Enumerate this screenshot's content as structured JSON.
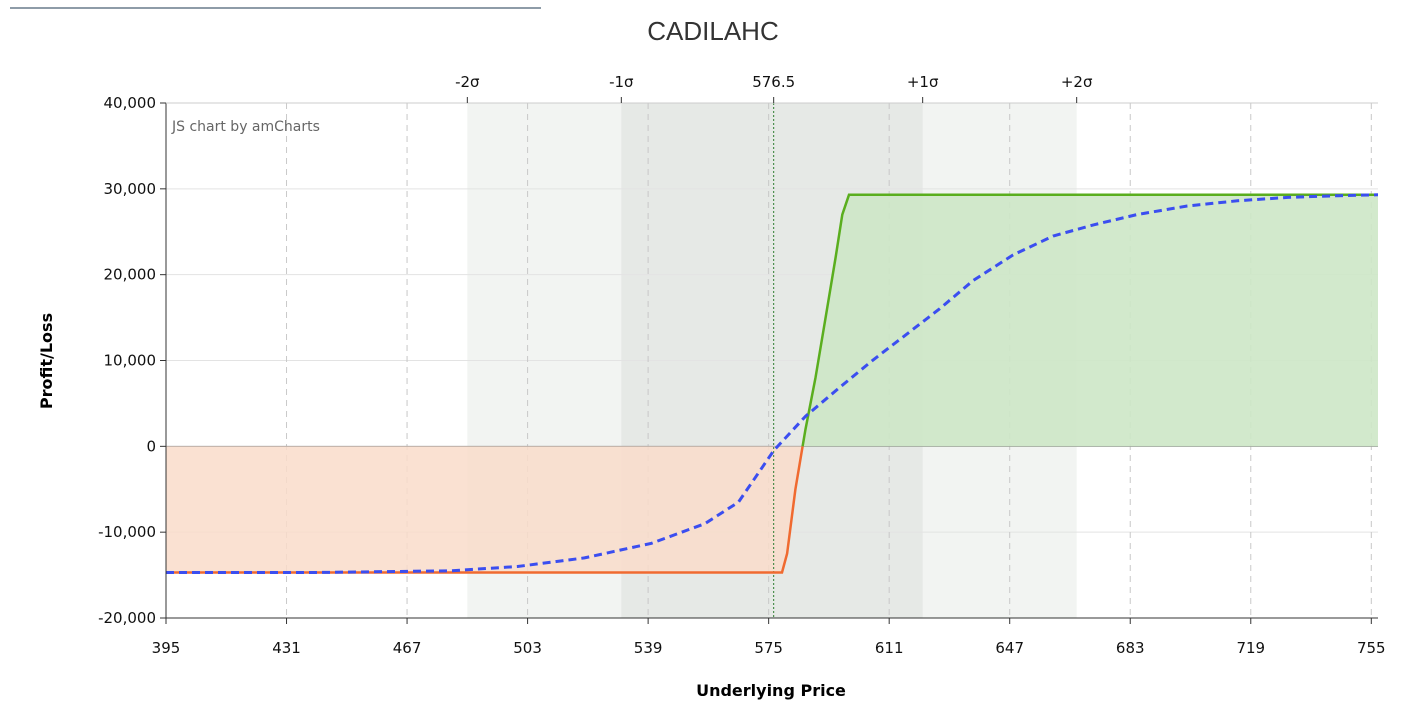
{
  "chart_data": {
    "type": "line",
    "title": "CADILAHC",
    "xlabel": "Underlying Price",
    "ylabel": "Profit/Loss",
    "watermark": "JS chart by amCharts",
    "xlim": [
      395,
      757
    ],
    "ylim": [
      -20000,
      40000
    ],
    "x_ticks": [
      395,
      431,
      467,
      503,
      539,
      575,
      611,
      647,
      683,
      719,
      755
    ],
    "x_tick_labels": [
      "395",
      "431",
      "467",
      "503",
      "539",
      "575",
      "611",
      "647",
      "683",
      "719",
      "755"
    ],
    "y_ticks": [
      -20000,
      -10000,
      0,
      10000,
      20000,
      30000,
      40000
    ],
    "y_tick_labels": [
      "-20,000",
      "-10,000",
      "0",
      "10,000",
      "20,000",
      "30,000",
      "40,000"
    ],
    "current_price": 576.5,
    "top_axis": [
      {
        "label": "-2σ",
        "x": 485
      },
      {
        "label": "-1σ",
        "x": 531
      },
      {
        "label": "576.5",
        "x": 576.5
      },
      {
        "label": "+1σ",
        "x": 621
      },
      {
        "label": "+2σ",
        "x": 667
      }
    ],
    "sigma_bands": [
      {
        "name": "2σ",
        "from": 485,
        "to": 667,
        "color": "#f2f4f2"
      },
      {
        "name": "1σ",
        "from": 531,
        "to": 621,
        "color": "#e6e9e6"
      }
    ],
    "series": [
      {
        "key": "expiration",
        "color_profit": "#5aae1e",
        "color_loss": "#f06a30",
        "fill_profit": "#cde7c6",
        "fill_loss": "#f9dcca",
        "x": [
          395,
          579,
          580.5,
          583,
          586,
          589,
          592,
          595,
          597,
          599,
          757
        ],
        "y": [
          -14700,
          -14700,
          -12500,
          -5000,
          2000,
          8000,
          15000,
          22000,
          27000,
          29300,
          29300
        ]
      },
      {
        "key": "today",
        "color": "#3b4ef0",
        "dashed": true,
        "x": [
          395,
          440,
          480,
          500,
          520,
          540,
          556,
          566,
          576.5,
          586,
          596,
          606,
          616,
          626,
          636,
          648,
          660,
          672,
          685,
          700,
          715,
          730,
          745,
          757
        ],
        "y": [
          -14700,
          -14700,
          -14500,
          -14000,
          -13000,
          -11300,
          -9000,
          -6500,
          -500,
          3500,
          6800,
          10000,
          13000,
          16000,
          19300,
          22300,
          24500,
          25800,
          27000,
          28000,
          28600,
          29000,
          29200,
          29300
        ]
      }
    ],
    "colors": {
      "grid": "#e3e3e3",
      "vgrid": "#c8c8c8",
      "zero_line": "#888888",
      "axis": "#333333",
      "current_price_line": "#2e7d32",
      "top_line": "#1d3a52"
    }
  }
}
